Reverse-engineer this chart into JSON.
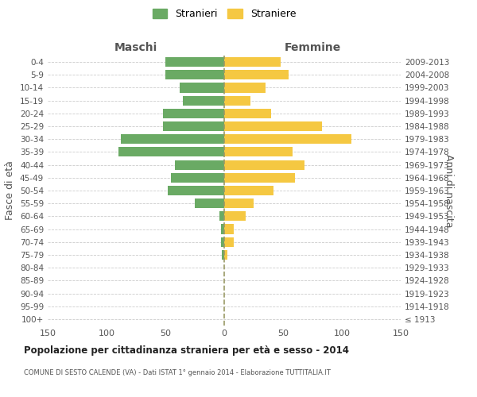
{
  "age_groups": [
    "100+",
    "95-99",
    "90-94",
    "85-89",
    "80-84",
    "75-79",
    "70-74",
    "65-69",
    "60-64",
    "55-59",
    "50-54",
    "45-49",
    "40-44",
    "35-39",
    "30-34",
    "25-29",
    "20-24",
    "15-19",
    "10-14",
    "5-9",
    "0-4"
  ],
  "birth_years": [
    "≤ 1913",
    "1914-1918",
    "1919-1923",
    "1924-1928",
    "1929-1933",
    "1934-1938",
    "1939-1943",
    "1944-1948",
    "1949-1953",
    "1954-1958",
    "1959-1963",
    "1964-1968",
    "1969-1973",
    "1974-1978",
    "1979-1983",
    "1984-1988",
    "1989-1993",
    "1994-1998",
    "1999-2003",
    "2004-2008",
    "2009-2013"
  ],
  "maschi": [
    0,
    0,
    0,
    0,
    0,
    2,
    3,
    3,
    4,
    25,
    48,
    45,
    42,
    90,
    88,
    52,
    52,
    35,
    38,
    50,
    50
  ],
  "femmine": [
    0,
    0,
    0,
    0,
    0,
    3,
    8,
    8,
    18,
    25,
    42,
    60,
    68,
    58,
    108,
    83,
    40,
    22,
    35,
    55,
    48
  ],
  "maschi_color": "#6aaa64",
  "femmine_color": "#f5c842",
  "background_color": "#ffffff",
  "grid_color": "#cccccc",
  "title": "Popolazione per cittadinanza straniera per età e sesso - 2014",
  "subtitle": "COMUNE DI SESTO CALENDE (VA) - Dati ISTAT 1° gennaio 2014 - Elaborazione TUTTITALIA.IT",
  "xlabel_left": "Maschi",
  "xlabel_right": "Femmine",
  "ylabel_left": "Fasce di età",
  "ylabel_right": "Anni di nascita",
  "legend_maschi": "Stranieri",
  "legend_femmine": "Straniere",
  "xlim": 150
}
